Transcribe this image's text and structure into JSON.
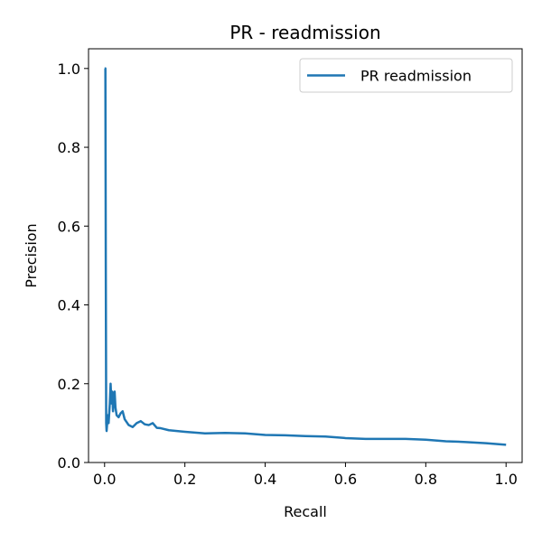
{
  "chart_data": {
    "type": "line",
    "title": "PR - readmission",
    "xlabel": "Recall",
    "ylabel": "Precision",
    "xlim": [
      -0.04,
      1.04
    ],
    "ylim": [
      0.0,
      1.05
    ],
    "x_ticks": [
      "0.0",
      "0.2",
      "0.4",
      "0.6",
      "0.8",
      "1.0"
    ],
    "y_ticks": [
      "0.0",
      "0.2",
      "0.4",
      "0.6",
      "0.8",
      "1.0"
    ],
    "grid": false,
    "legend_position": "top-right",
    "series": [
      {
        "name": "PR readmission",
        "color": "#1f77b4",
        "points": [
          [
            0.0,
            1.0
          ],
          [
            0.002,
            1.0
          ],
          [
            0.003,
            0.5
          ],
          [
            0.004,
            0.1
          ],
          [
            0.005,
            0.08
          ],
          [
            0.008,
            0.12
          ],
          [
            0.01,
            0.1
          ],
          [
            0.013,
            0.15
          ],
          [
            0.015,
            0.2
          ],
          [
            0.017,
            0.15
          ],
          [
            0.019,
            0.18
          ],
          [
            0.021,
            0.13
          ],
          [
            0.023,
            0.17
          ],
          [
            0.025,
            0.18
          ],
          [
            0.027,
            0.14
          ],
          [
            0.03,
            0.12
          ],
          [
            0.035,
            0.115
          ],
          [
            0.04,
            0.125
          ],
          [
            0.045,
            0.13
          ],
          [
            0.05,
            0.11
          ],
          [
            0.06,
            0.095
          ],
          [
            0.07,
            0.09
          ],
          [
            0.08,
            0.1
          ],
          [
            0.09,
            0.105
          ],
          [
            0.1,
            0.097
          ],
          [
            0.11,
            0.095
          ],
          [
            0.12,
            0.1
          ],
          [
            0.13,
            0.088
          ],
          [
            0.14,
            0.087
          ],
          [
            0.16,
            0.082
          ],
          [
            0.18,
            0.08
          ],
          [
            0.2,
            0.078
          ],
          [
            0.25,
            0.074
          ],
          [
            0.3,
            0.075
          ],
          [
            0.35,
            0.074
          ],
          [
            0.4,
            0.07
          ],
          [
            0.45,
            0.069
          ],
          [
            0.5,
            0.067
          ],
          [
            0.55,
            0.066
          ],
          [
            0.6,
            0.062
          ],
          [
            0.65,
            0.06
          ],
          [
            0.7,
            0.06
          ],
          [
            0.75,
            0.06
          ],
          [
            0.8,
            0.058
          ],
          [
            0.85,
            0.054
          ],
          [
            0.9,
            0.052
          ],
          [
            0.95,
            0.049
          ],
          [
            1.0,
            0.045
          ]
        ]
      }
    ]
  }
}
